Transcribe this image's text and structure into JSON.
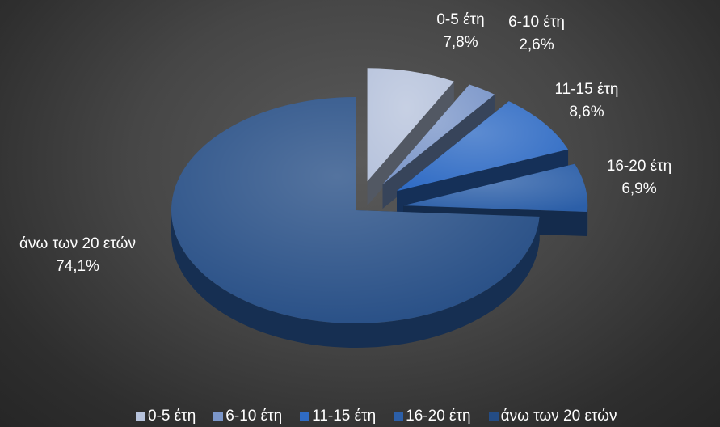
{
  "chart_data": {
    "type": "pie",
    "title": "",
    "categories": [
      "0-5 έτη",
      "6-10 έτη",
      "11-15 έτη",
      "16-20 έτη",
      "άνω των 20 ετών"
    ],
    "values": [
      7.8,
      2.6,
      8.6,
      6.9,
      74.1
    ],
    "value_labels": [
      "7,8%",
      "2,6%",
      "8,6%",
      "6,9%",
      "74,1%"
    ],
    "colors": [
      "#b7c3dc",
      "#7b96c9",
      "#2f6bc4",
      "#2c5fa8",
      "#244c84"
    ],
    "style": "3d-exploded",
    "legend": {
      "position": "bottom"
    }
  }
}
